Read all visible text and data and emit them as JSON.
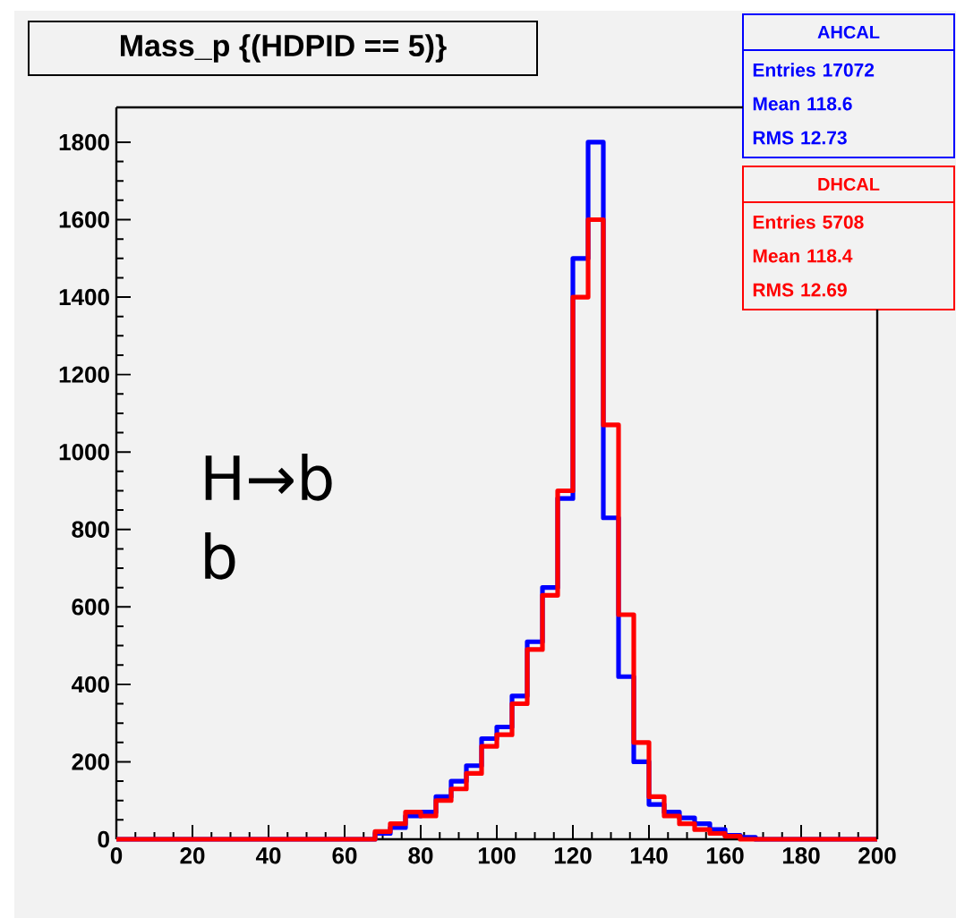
{
  "chart_data": {
    "type": "histogram",
    "title": "Mass_p  {(HDPID == 5)}",
    "bins": [
      0,
      4,
      8,
      12,
      16,
      20,
      24,
      28,
      32,
      36,
      40,
      44,
      48,
      52,
      56,
      60,
      64,
      68,
      72,
      76,
      80,
      84,
      88,
      92,
      96,
      100,
      104,
      108,
      112,
      116,
      120,
      124,
      128,
      132,
      136,
      140,
      144,
      148,
      152,
      156,
      160,
      164,
      168,
      172,
      176,
      180,
      184,
      188,
      192,
      196,
      200
    ],
    "series": [
      {
        "name": "AHCAL",
        "color": "#0000ff",
        "values": [
          0,
          0,
          0,
          0,
          0,
          0,
          0,
          0,
          0,
          0,
          0,
          0,
          0,
          0,
          0,
          0,
          0,
          15,
          30,
          60,
          70,
          110,
          150,
          190,
          260,
          290,
          370,
          510,
          650,
          880,
          1500,
          1800,
          830,
          420,
          200,
          90,
          70,
          55,
          40,
          25,
          10,
          5,
          0,
          0,
          0,
          0,
          0,
          0,
          0,
          0
        ]
      },
      {
        "name": "DHCAL",
        "color": "#ff0000",
        "values": [
          0,
          0,
          0,
          0,
          0,
          0,
          0,
          0,
          0,
          0,
          0,
          0,
          0,
          0,
          0,
          0,
          0,
          20,
          40,
          70,
          60,
          100,
          130,
          170,
          240,
          270,
          350,
          490,
          630,
          900,
          1400,
          1600,
          1070,
          580,
          250,
          110,
          60,
          40,
          25,
          15,
          8,
          0,
          0,
          0,
          0,
          0,
          0,
          0,
          0,
          0
        ]
      }
    ],
    "xlim": [
      0,
      200
    ],
    "ylim": [
      0,
      1890
    ],
    "xticks": [
      0,
      20,
      40,
      60,
      80,
      100,
      120,
      140,
      160,
      180,
      200
    ],
    "yticks": [
      0,
      200,
      400,
      600,
      800,
      1000,
      1200,
      1400,
      1600,
      1800
    ],
    "legend": "top right",
    "annotations": [
      "Entries 17072",
      "Mean 118.6",
      "RMS 12.73",
      "Entries 5708",
      "Mean 118.4",
      "RMS 12.69",
      "H→b b"
    ]
  }
}
